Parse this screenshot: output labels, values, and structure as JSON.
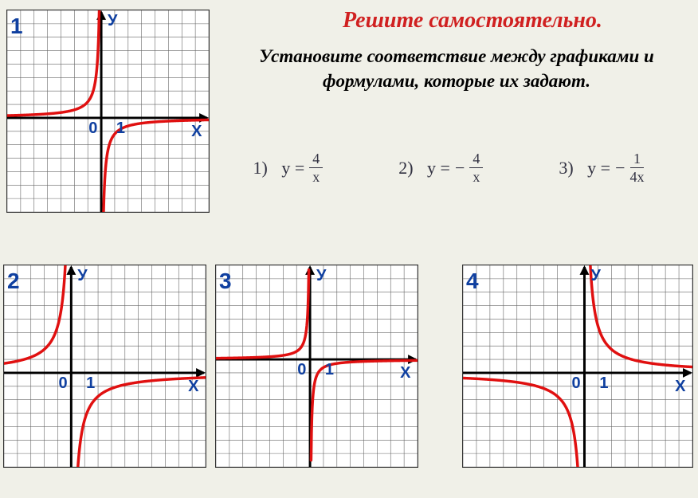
{
  "title": "Решите самостоятельно.",
  "subtitle": "Установите соответствие между графиками и формулами, которые их задают.",
  "formulas": [
    {
      "id": "1)",
      "expr_prefix": "y =",
      "num": "4",
      "den": "x",
      "neg": false
    },
    {
      "id": "2)",
      "expr_prefix": "y =",
      "num": "4",
      "den": "x",
      "neg": true
    },
    {
      "id": "3)",
      "expr_prefix": "y =",
      "num": "1",
      "den": "4x",
      "neg": true
    }
  ],
  "charts": {
    "common": {
      "grid_color": "#666",
      "axis_color": "#000",
      "curve_color": "#e01010",
      "curve_width": 3.5,
      "bg_color": "#ffffff",
      "label_color": "#1040a0",
      "cell_size": 17
    },
    "c1": {
      "label": "1",
      "cols": 15,
      "rows": 15,
      "origin_col": 7,
      "origin_row": 8,
      "y_label": "У",
      "x_label": "Х",
      "zero_label": "0",
      "one_label": "1",
      "curve_type": "hyperbola_neg_k",
      "k": -1.2
    },
    "c2": {
      "label": "2",
      "cols": 15,
      "rows": 15,
      "origin_col": 5,
      "origin_row": 8,
      "y_label": "У",
      "x_label": "Х",
      "zero_label": "0",
      "one_label": "1",
      "curve_type": "hyperbola_neg_k",
      "k": -3.5
    },
    "c3": {
      "label": "3",
      "cols": 15,
      "rows": 15,
      "origin_col": 7,
      "origin_row": 7,
      "y_label": "У",
      "x_label": "Х",
      "zero_label": "0",
      "one_label": "1",
      "curve_type": "hyperbola_neg_k",
      "k": -0.6
    },
    "c4": {
      "label": "4",
      "cols": 17,
      "rows": 15,
      "origin_col": 9,
      "origin_row": 8,
      "y_label": "У",
      "x_label": "Х",
      "zero_label": "0",
      "one_label": "1",
      "curve_type": "hyperbola_pos_k",
      "k": 3.5
    }
  }
}
